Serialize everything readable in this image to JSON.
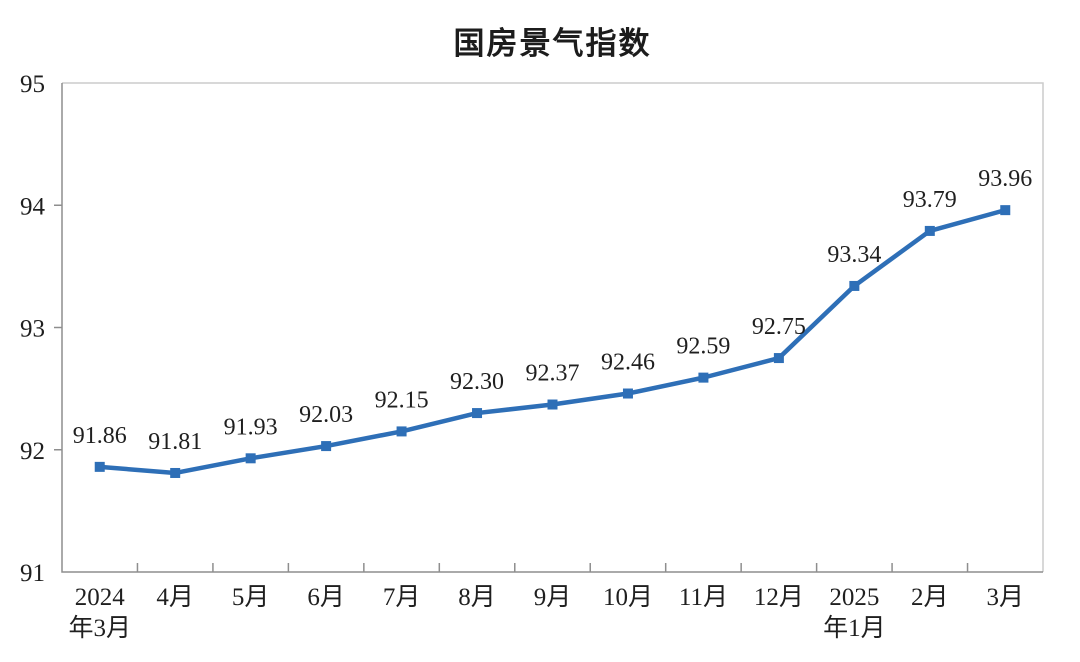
{
  "chart_data": {
    "type": "line",
    "title": "国房景气指数",
    "categories": [
      "2024年3月",
      "4月",
      "5月",
      "6月",
      "7月",
      "8月",
      "9月",
      "10月",
      "11月",
      "12月",
      "2025年1月",
      "2月",
      "3月"
    ],
    "x_tick_label_lines": [
      [
        "2024",
        "年3月"
      ],
      [
        "4月"
      ],
      [
        "5月"
      ],
      [
        "6月"
      ],
      [
        "7月"
      ],
      [
        "8月"
      ],
      [
        "9月"
      ],
      [
        "10月"
      ],
      [
        "11月"
      ],
      [
        "12月"
      ],
      [
        "2025",
        "年1月"
      ],
      [
        "2月"
      ],
      [
        "3月"
      ]
    ],
    "values": [
      91.86,
      91.81,
      91.93,
      92.03,
      92.15,
      92.3,
      92.37,
      92.46,
      92.59,
      92.75,
      93.34,
      93.79,
      93.96
    ],
    "value_labels": [
      "91.86",
      "91.81",
      "91.93",
      "92.03",
      "92.15",
      "92.30",
      "92.37",
      "92.46",
      "92.59",
      "92.75",
      "93.34",
      "93.79",
      "93.96"
    ],
    "xlabel": "",
    "ylabel": "",
    "ylim": [
      91,
      95
    ],
    "y_ticks": [
      91,
      92,
      93,
      94,
      95
    ],
    "grid": false,
    "legend_position": "none",
    "marker": "square",
    "colors": {
      "line": "#2e6fb7",
      "marker": "#2e6fb7",
      "text": "#1f1f1f",
      "axis": "#8e8e8e",
      "plot_border": "#cccccc"
    }
  }
}
